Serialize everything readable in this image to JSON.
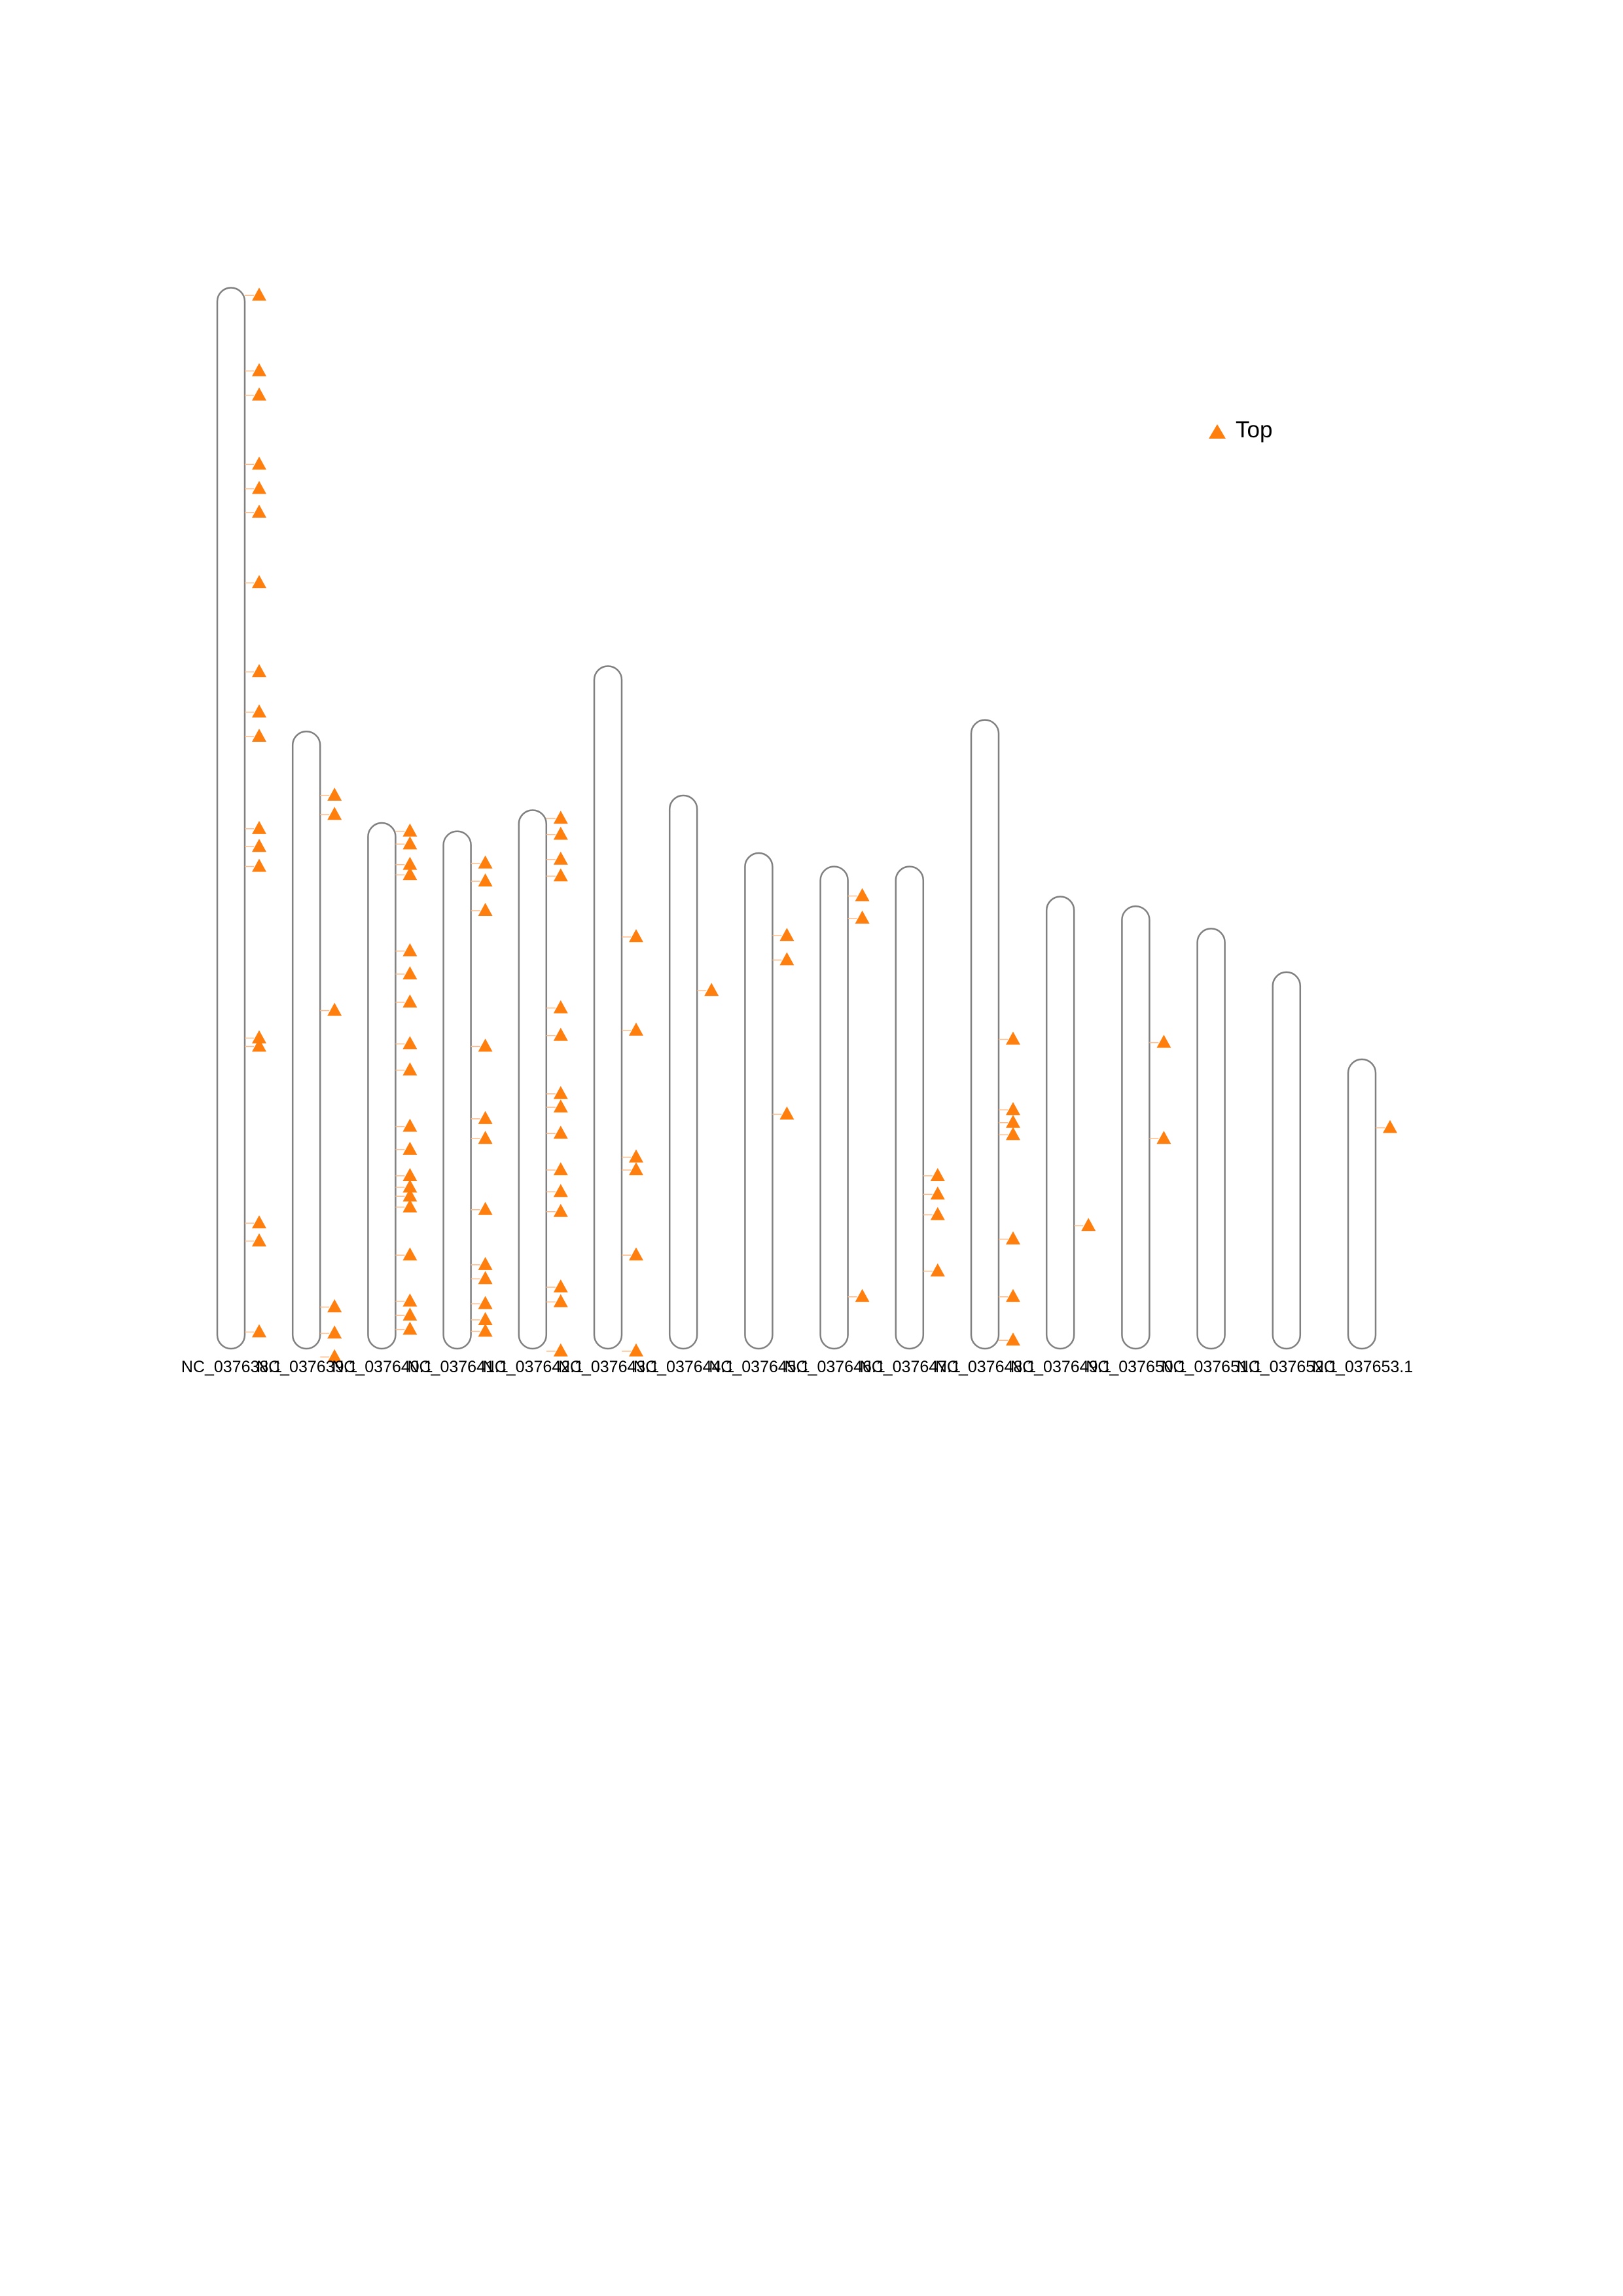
{
  "chart_data": {
    "type": "chromosome-ideogram",
    "title": "",
    "xlabel": "",
    "ylabel": "",
    "legend": {
      "placement": "top-right",
      "entries": [
        {
          "label": "Top",
          "marker": "triangle",
          "color": "#ff7f0e"
        }
      ]
    },
    "colors": {
      "chromosome_outline": "#808080",
      "marker": "#ff7f0e",
      "connector": "#ffbb88"
    },
    "y_scale_note": "positions in Mb, 0 = bottom of chromosome",
    "chromosomes": [
      {
        "name": "NC_037638.1",
        "length": 165.7,
        "markers": [
          164.5,
          152.7,
          148.9,
          138.1,
          134.3,
          130.6,
          119.6,
          105.7,
          99.4,
          95.6,
          81.2,
          78.4,
          75.3,
          48.5,
          47.2,
          19.6,
          16.8,
          2.6
        ]
      },
      {
        "name": "NC_037639.1",
        "length": 96.4,
        "markers": [
          86.4,
          83.4,
          52.8,
          6.5,
          2.4,
          -1.3
        ]
      },
      {
        "name": "NC_037640.1",
        "length": 82.1,
        "markers": [
          80.8,
          78.8,
          75.6,
          74.0,
          62.1,
          58.5,
          54.1,
          47.6,
          43.5,
          34.7,
          31.1,
          27.0,
          25.2,
          23.8,
          22.1,
          14.6,
          7.4,
          5.2,
          3.0
        ]
      },
      {
        "name": "NC_037641.1",
        "length": 80.8,
        "markers": [
          75.8,
          73.0,
          68.4,
          47.2,
          35.9,
          32.8,
          21.7,
          13.1,
          10.9,
          7.0,
          4.5,
          2.7
        ]
      },
      {
        "name": "NC_037642.1",
        "length": 84.1,
        "markers": [
          82.8,
          80.3,
          76.4,
          73.8,
          53.2,
          48.9,
          39.8,
          37.7,
          33.6,
          27.9,
          24.5,
          21.4,
          9.6,
          7.3,
          -0.4
        ]
      },
      {
        "name": "NC_037643.1",
        "length": 106.6,
        "markers": [
          64.3,
          49.7,
          29.9,
          27.9,
          14.6,
          -0.4
        ]
      },
      {
        "name": "NC_037644.1",
        "length": 86.4,
        "markers": [
          55.9
        ]
      },
      {
        "name": "NC_037645.1",
        "length": 77.4,
        "markers": [
          64.5,
          60.7,
          36.6
        ]
      },
      {
        "name": "NC_037646.1",
        "length": 75.3,
        "markers": [
          70.7,
          67.2,
          8.1
        ]
      },
      {
        "name": "NC_037647.1",
        "length": 75.3,
        "markers": [
          27.0,
          24.1,
          20.9,
          12.1
        ]
      },
      {
        "name": "NC_037648.1",
        "length": 98.2,
        "markers": [
          48.3,
          37.3,
          35.3,
          33.4,
          17.1,
          8.1,
          1.3
        ]
      },
      {
        "name": "NC_037649.1",
        "length": 70.6,
        "markers": [
          19.2
        ]
      },
      {
        "name": "NC_037650.1",
        "length": 69.1,
        "markers": [
          47.8,
          32.8
        ]
      },
      {
        "name": "NC_037651.1",
        "length": 65.6,
        "markers": []
      },
      {
        "name": "NC_037652.1",
        "length": 58.8,
        "markers": []
      },
      {
        "name": "NC_037653.1",
        "length": 45.2,
        "markers": [
          34.5
        ]
      }
    ]
  }
}
